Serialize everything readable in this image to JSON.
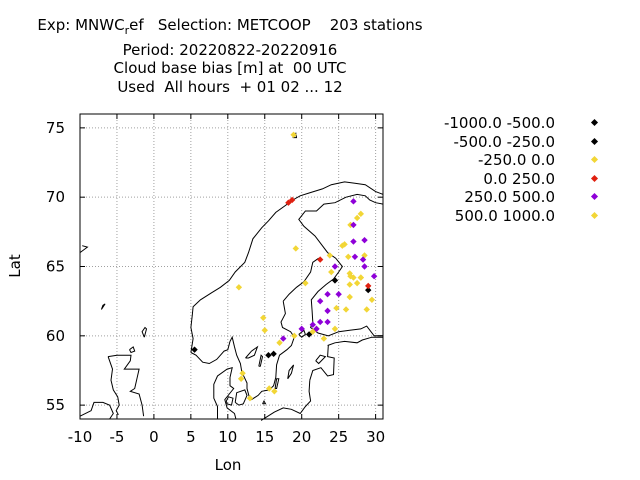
{
  "title": {
    "line1_prefix": "Exp: MNWC",
    "line1_sub": "r",
    "line1_suffix": "ef   Selection: METCOOP    203 stations",
    "line2": "Period: 20220822-20220916",
    "line3": "Cloud base bias [m] at  00 UTC",
    "line4": "Used  All hours  + 01 02 ... 12"
  },
  "chart_data": {
    "type": "scatter",
    "xlabel": "Lon",
    "ylabel": "Lat",
    "xlim": [
      -10,
      31
    ],
    "ylim": [
      54,
      76
    ],
    "xticks": [
      -10,
      -5,
      0,
      5,
      10,
      15,
      20,
      25,
      30
    ],
    "yticks": [
      55,
      60,
      65,
      70,
      75
    ],
    "grid": true,
    "legend_position": "right",
    "series": [
      {
        "name": "-1000.0 -500.0",
        "color": "#000000",
        "points": []
      },
      {
        "name": "-500.0 -250.0",
        "color": "#000000",
        "points": [
          [
            15.5,
            58.6
          ],
          [
            16.2,
            58.7
          ],
          [
            24.5,
            64.0
          ],
          [
            21.0,
            60.1
          ],
          [
            29.0,
            63.3
          ],
          [
            5.5,
            59.0
          ]
        ]
      },
      {
        "name": "-250.0 0.0",
        "color": "#f2d636",
        "points": [
          [
            18.9,
            74.5
          ],
          [
            19.2,
            66.3
          ],
          [
            26.6,
            68.0
          ],
          [
            27.5,
            68.5
          ],
          [
            28.0,
            68.8
          ],
          [
            25.5,
            66.5
          ],
          [
            25.8,
            66.6
          ],
          [
            23.8,
            65.8
          ],
          [
            24.0,
            64.6
          ],
          [
            26.5,
            64.5
          ],
          [
            27.0,
            64.2
          ],
          [
            28.0,
            64.2
          ],
          [
            26.5,
            63.7
          ],
          [
            27.5,
            63.8
          ],
          [
            29.5,
            62.6
          ],
          [
            28.8,
            61.9
          ],
          [
            26.0,
            61.9
          ],
          [
            20.5,
            63.8
          ],
          [
            15.0,
            60.4
          ],
          [
            14.8,
            61.3
          ],
          [
            11.5,
            63.5
          ],
          [
            19.0,
            60.0
          ],
          [
            21.5,
            60.3
          ],
          [
            23.0,
            59.8
          ],
          [
            17.0,
            59.5
          ],
          [
            15.6,
            56.2
          ],
          [
            16.3,
            56.0
          ],
          [
            13.0,
            55.5
          ],
          [
            12.0,
            57.3
          ],
          [
            11.8,
            56.9
          ],
          [
            22.0,
            60.5
          ],
          [
            24.5,
            60.5
          ],
          [
            28.5,
            65.8
          ],
          [
            26.3,
            65.7
          ]
        ]
      },
      {
        "name": "0.0 250.0",
        "color": "#e02010",
        "points": [
          [
            18.2,
            69.6
          ],
          [
            18.7,
            69.8
          ],
          [
            22.5,
            65.5
          ],
          [
            29.0,
            63.6
          ]
        ]
      },
      {
        "name": "250.0 500.0",
        "color": "#8e00d8",
        "points": [
          [
            27.0,
            69.7
          ],
          [
            27.0,
            68.0
          ],
          [
            27.0,
            66.8
          ],
          [
            28.5,
            66.9
          ],
          [
            27.2,
            65.7
          ],
          [
            28.3,
            65.5
          ],
          [
            28.5,
            65.0
          ],
          [
            24.5,
            65.0
          ],
          [
            29.8,
            64.3
          ],
          [
            23.5,
            63.0
          ],
          [
            25.0,
            63.0
          ],
          [
            22.5,
            62.5
          ],
          [
            23.5,
            61.8
          ],
          [
            22.5,
            61.0
          ],
          [
            22.0,
            60.5
          ],
          [
            21.5,
            60.8
          ],
          [
            20.0,
            60.5
          ],
          [
            17.5,
            59.8
          ],
          [
            23.5,
            61.0
          ]
        ]
      },
      {
        "name": "500.0 1000.0",
        "color": "#f2d636",
        "points": [
          [
            28.0,
            64.2
          ],
          [
            24.7,
            62.0
          ],
          [
            26.5,
            62.8
          ],
          [
            26.6,
            64.3
          ]
        ]
      }
    ]
  }
}
